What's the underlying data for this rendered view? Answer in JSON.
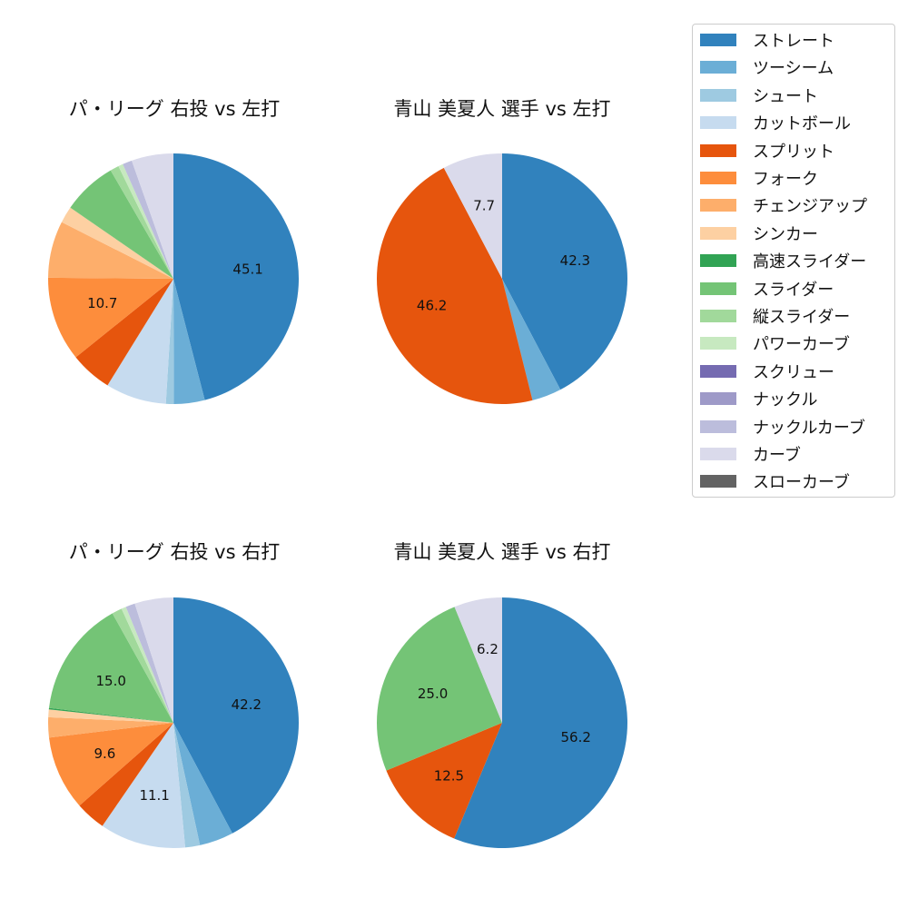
{
  "colors": {
    "ストレート": "#3182bd",
    "ツーシーム": "#6baed6",
    "シュート": "#9ecae1",
    "カットボール": "#c6dbef",
    "スプリット": "#e6550d",
    "フォーク": "#fd8d3c",
    "チェンジアップ": "#fdae6b",
    "シンカー": "#fdd0a2",
    "高速スライダー": "#31a354",
    "スライダー": "#74c476",
    "縦スライダー": "#a1d99b",
    "パワーカーブ": "#c7e9c0",
    "スクリュー": "#756bb1",
    "ナックル": "#9e9ac8",
    "ナックルカーブ": "#bcbddc",
    "カーブ": "#dadaeb",
    "スローカーブ": "#636363"
  },
  "legend": [
    "ストレート",
    "ツーシーム",
    "シュート",
    "カットボール",
    "スプリット",
    "フォーク",
    "チェンジアップ",
    "シンカー",
    "高速スライダー",
    "スライダー",
    "縦スライダー",
    "パワーカーブ",
    "スクリュー",
    "ナックル",
    "ナックルカーブ",
    "カーブ",
    "スローカーブ"
  ],
  "chart_data": [
    {
      "type": "pie",
      "title": "パ・リーグ 右投 vs 左打",
      "slices": [
        {
          "label": "ストレート",
          "value": 45.1,
          "show": "45.1"
        },
        {
          "label": "ツーシーム",
          "value": 3.9
        },
        {
          "label": "シュート",
          "value": 1.0
        },
        {
          "label": "カットボール",
          "value": 7.7
        },
        {
          "label": "スプリット",
          "value": 5.3
        },
        {
          "label": "フォーク",
          "value": 10.7,
          "show": "10.7"
        },
        {
          "label": "チェンジアップ",
          "value": 7.2
        },
        {
          "label": "シンカー",
          "value": 2.1
        },
        {
          "label": "スライダー",
          "value": 6.9
        },
        {
          "label": "縦スライダー",
          "value": 1.1
        },
        {
          "label": "パワーカーブ",
          "value": 0.6
        },
        {
          "label": "ナックルカーブ",
          "value": 1.2
        },
        {
          "label": "カーブ",
          "value": 5.3
        }
      ]
    },
    {
      "type": "pie",
      "title": "青山 美夏人 選手 vs 左打",
      "slices": [
        {
          "label": "ストレート",
          "value": 42.3,
          "show": "42.3"
        },
        {
          "label": "ツーシーム",
          "value": 3.8
        },
        {
          "label": "スプリット",
          "value": 46.2,
          "show": "46.2"
        },
        {
          "label": "カーブ",
          "value": 7.7,
          "show": "7.7"
        }
      ]
    },
    {
      "type": "pie",
      "title": "パ・リーグ 右投 vs 右打",
      "slices": [
        {
          "label": "ストレート",
          "value": 42.2,
          "show": "42.2"
        },
        {
          "label": "ツーシーム",
          "value": 4.4
        },
        {
          "label": "シュート",
          "value": 1.9
        },
        {
          "label": "カットボール",
          "value": 11.1,
          "show": "11.1"
        },
        {
          "label": "スプリット",
          "value": 3.9
        },
        {
          "label": "フォーク",
          "value": 9.6,
          "show": "9.6"
        },
        {
          "label": "チェンジアップ",
          "value": 2.6
        },
        {
          "label": "シンカー",
          "value": 1.0
        },
        {
          "label": "高速スライダー",
          "value": 0.2
        },
        {
          "label": "スライダー",
          "value": 15.0,
          "show": "15.0"
        },
        {
          "label": "縦スライダー",
          "value": 1.3
        },
        {
          "label": "パワーカーブ",
          "value": 0.6
        },
        {
          "label": "ナックルカーブ",
          "value": 1.2
        },
        {
          "label": "カーブ",
          "value": 5.0
        }
      ]
    },
    {
      "type": "pie",
      "title": "青山 美夏人 選手 vs 右打",
      "slices": [
        {
          "label": "ストレート",
          "value": 56.2,
          "show": "56.2"
        },
        {
          "label": "スプリット",
          "value": 12.5,
          "show": "12.5"
        },
        {
          "label": "スライダー",
          "value": 25.0,
          "show": "25.0"
        },
        {
          "label": "カーブ",
          "value": 6.2,
          "show": "6.2"
        }
      ]
    }
  ]
}
